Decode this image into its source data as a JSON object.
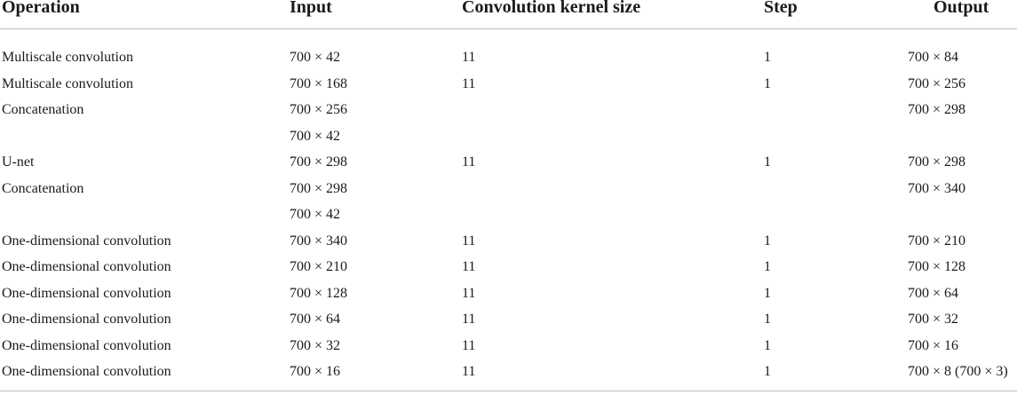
{
  "table": {
    "headers": {
      "operation": "Operation",
      "input": "Input",
      "kernel": "Convolution kernel size",
      "step": "Step",
      "output": "Output"
    },
    "rows": [
      {
        "operation": "Multiscale convolution",
        "input": "700 × 42",
        "kernel": "11",
        "step": "1",
        "output": "700 × 84"
      },
      {
        "operation": "Multiscale convolution",
        "input": "700 × 168",
        "kernel": "11",
        "step": "1",
        "output": "700 × 256"
      },
      {
        "operation": "Concatenation",
        "input": "700 × 256",
        "kernel": "",
        "step": "",
        "output": "700 × 298"
      },
      {
        "operation": "",
        "input": "700 × 42",
        "kernel": "",
        "step": "",
        "output": ""
      },
      {
        "operation": "U-net",
        "input": "700 × 298",
        "kernel": "11",
        "step": "1",
        "output": "700 × 298"
      },
      {
        "operation": "Concatenation",
        "input": "700 × 298",
        "kernel": "",
        "step": "",
        "output": "700 × 340"
      },
      {
        "operation": "",
        "input": "700 × 42",
        "kernel": "",
        "step": "",
        "output": ""
      },
      {
        "operation": "One-dimensional convolution",
        "input": "700 × 340",
        "kernel": "11",
        "step": "1",
        "output": "700 × 210"
      },
      {
        "operation": "One-dimensional convolution",
        "input": "700 × 210",
        "kernel": "11",
        "step": "1",
        "output": "700 × 128"
      },
      {
        "operation": "One-dimensional convolution",
        "input": "700 × 128",
        "kernel": "11",
        "step": "1",
        "output": "700 × 64"
      },
      {
        "operation": "One-dimensional convolution",
        "input": "700 × 64",
        "kernel": "11",
        "step": "1",
        "output": "700 × 32"
      },
      {
        "operation": "One-dimensional convolution",
        "input": "700 × 32",
        "kernel": "11",
        "step": "1",
        "output": "700 × 16"
      },
      {
        "operation": "One-dimensional convolution",
        "input": "700 × 16",
        "kernel": "11",
        "step": "1",
        "output": "700 × 8 (700 × 3)"
      }
    ]
  }
}
